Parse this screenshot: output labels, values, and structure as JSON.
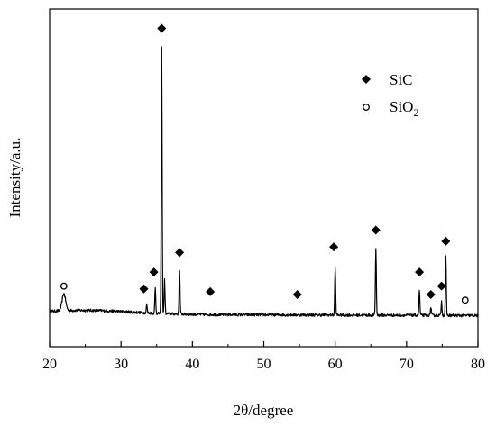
{
  "chart_data": {
    "type": "line",
    "title": "",
    "xlabel": "2θ/degree",
    "ylabel": "Intensity/a.u.",
    "xlim": [
      20,
      80
    ],
    "ylim": [
      0,
      100
    ],
    "xticks": [
      20,
      30,
      40,
      50,
      60,
      70,
      80
    ],
    "tick_labels": [
      "20",
      "30",
      "40",
      "50",
      "60",
      "70",
      "80"
    ],
    "grid": false,
    "legend_position": "top-right",
    "legend": [
      {
        "marker": "diamond",
        "label": "SiC"
      },
      {
        "marker": "circle",
        "label": "SiO",
        "subscript": "2"
      }
    ],
    "series": [
      {
        "baseline": 2,
        "peaks": [
          {
            "x": 22.0,
            "y": 8
          },
          {
            "x": 33.6,
            "y": 5
          },
          {
            "x": 34.8,
            "y": 11
          },
          {
            "x": 35.7,
            "y": 97
          },
          {
            "x": 36.1,
            "y": 14
          },
          {
            "x": 38.2,
            "y": 18
          },
          {
            "x": 41.5,
            "y": 2
          },
          {
            "x": 42.3,
            "y": 2
          },
          {
            "x": 54.7,
            "y": 2
          },
          {
            "x": 57.5,
            "y": 2
          },
          {
            "x": 60.0,
            "y": 19
          },
          {
            "x": 65.7,
            "y": 26
          },
          {
            "x": 71.8,
            "y": 11
          },
          {
            "x": 73.4,
            "y": 5
          },
          {
            "x": 74.9,
            "y": 7
          },
          {
            "x": 75.5,
            "y": 23
          },
          {
            "x": 78.2,
            "y": 2
          }
        ]
      }
    ],
    "annotations": [
      {
        "marker": "circle",
        "x": 22.0,
        "y": 12
      },
      {
        "marker": "diamond",
        "x": 33.2,
        "y": 11
      },
      {
        "marker": "diamond",
        "x": 34.6,
        "y": 17
      },
      {
        "marker": "diamond",
        "x": 35.7,
        "y": 104
      },
      {
        "marker": "diamond",
        "x": 38.2,
        "y": 24
      },
      {
        "marker": "diamond",
        "x": 42.5,
        "y": 10
      },
      {
        "marker": "diamond",
        "x": 54.7,
        "y": 9
      },
      {
        "marker": "diamond",
        "x": 59.8,
        "y": 26
      },
      {
        "marker": "diamond",
        "x": 65.7,
        "y": 32
      },
      {
        "marker": "diamond",
        "x": 71.8,
        "y": 17
      },
      {
        "marker": "diamond",
        "x": 73.4,
        "y": 9
      },
      {
        "marker": "diamond",
        "x": 74.9,
        "y": 12
      },
      {
        "marker": "diamond",
        "x": 75.5,
        "y": 28
      },
      {
        "marker": "circle",
        "x": 78.2,
        "y": 7
      }
    ],
    "colors": {
      "line": "#000000",
      "axis": "#000000",
      "background": "#ffffff"
    }
  }
}
